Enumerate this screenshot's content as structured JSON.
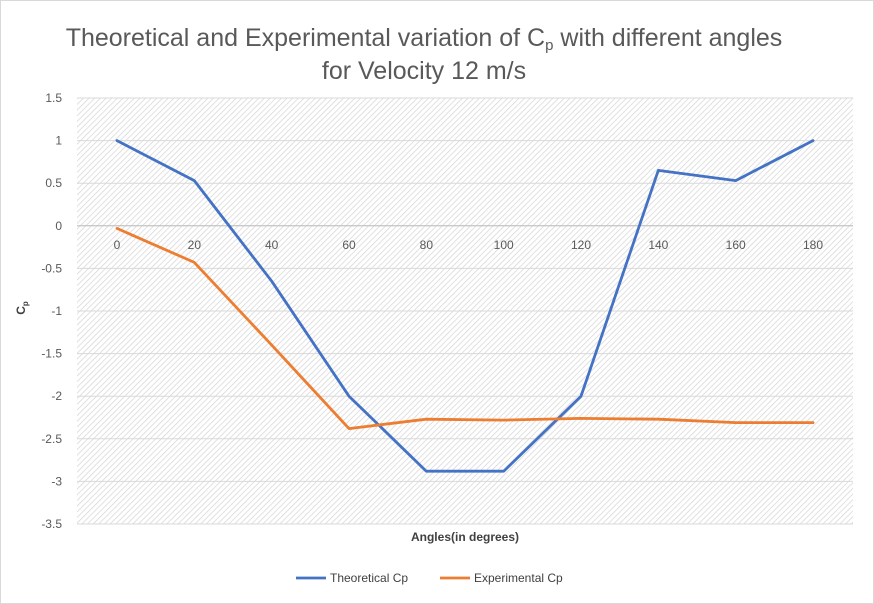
{
  "chart_data": {
    "type": "line",
    "title_part1": "Theoretical and Experimental variation of C",
    "title_sub": "p",
    "title_part2": " with different angles",
    "title_line2": "for Velocity 12 m/s",
    "xlabel": "Angles(in degrees)",
    "ylabel_main": "C",
    "ylabel_sub": "p",
    "x": [
      0,
      20,
      40,
      60,
      80,
      100,
      120,
      140,
      160,
      180
    ],
    "x_tick_labels": [
      "0",
      "20",
      "40",
      "60",
      "80",
      "100",
      "120",
      "140",
      "160",
      "180"
    ],
    "y_ticks": [
      1.5,
      1,
      0.5,
      0,
      -0.5,
      -1,
      -1.5,
      -2,
      -2.5,
      -3,
      -3.5
    ],
    "y_tick_labels": [
      "1.5",
      "1",
      "0.5",
      "0",
      "-0.5",
      "-1",
      "-1.5",
      "-2",
      "-2.5",
      "-3",
      "-3.5"
    ],
    "ylim": [
      -3.5,
      1.5
    ],
    "grid": true,
    "legend_position": "bottom",
    "series": [
      {
        "name": "Theoretical Cp",
        "color": "#4472C4",
        "values": [
          1.0,
          0.53,
          -0.65,
          -2.0,
          -2.88,
          -2.88,
          -2.0,
          0.65,
          0.53,
          1.0
        ]
      },
      {
        "name": "Experimental Cp",
        "color": "#ED7D31",
        "values": [
          -0.03,
          -0.43,
          -1.4,
          -2.38,
          -2.27,
          -2.28,
          -2.26,
          -2.27,
          -2.31,
          -2.31
        ]
      }
    ]
  }
}
